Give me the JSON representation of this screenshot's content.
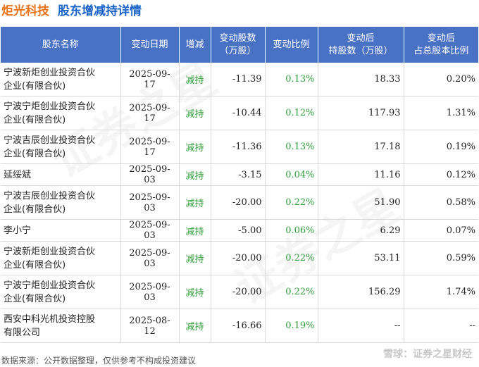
{
  "title": {
    "company": "炬光科技",
    "subtitle": "股东增减持详情"
  },
  "table": {
    "headers": [
      [
        "股东名称"
      ],
      [
        "变动日期"
      ],
      [
        "增减"
      ],
      [
        "变动股数",
        "（万股）"
      ],
      [
        "变动比例"
      ],
      [
        "变动后",
        "持股数（万股）"
      ],
      [
        "变动后",
        "占总股本比例"
      ]
    ],
    "rows": [
      {
        "name": [
          "宁波新炬创业投资合伙",
          "企业(有限合伙)"
        ],
        "date": "2025-09-17",
        "dir": "减持",
        "change": "-11.39",
        "ratio": "0.13%",
        "after": "18.33",
        "pct": "0.20%"
      },
      {
        "name": [
          "宁波宁炬创业投资合伙",
          "企业(有限合伙)"
        ],
        "date": "2025-09-17",
        "dir": "减持",
        "change": "-10.44",
        "ratio": "0.12%",
        "after": "117.93",
        "pct": "1.31%"
      },
      {
        "name": [
          "宁波吉辰创业投资合伙",
          "企业(有限合伙)"
        ],
        "date": "2025-09-17",
        "dir": "减持",
        "change": "-11.36",
        "ratio": "0.13%",
        "after": "17.18",
        "pct": "0.19%"
      },
      {
        "name": [
          "延绥斌"
        ],
        "date": "2025-09-03",
        "dir": "减持",
        "change": "-3.15",
        "ratio": "0.04%",
        "after": "11.16",
        "pct": "0.12%"
      },
      {
        "name": [
          "宁波吉辰创业投资合伙",
          "企业(有限合伙)"
        ],
        "date": "2025-09-03",
        "dir": "减持",
        "change": "-20.00",
        "ratio": "0.22%",
        "after": "51.90",
        "pct": "0.58%"
      },
      {
        "name": [
          "李小宁"
        ],
        "date": "2025-09-03",
        "dir": "减持",
        "change": "-5.00",
        "ratio": "0.06%",
        "after": "6.29",
        "pct": "0.07%"
      },
      {
        "name": [
          "宁波新炬创业投资合伙",
          "企业(有限合伙)"
        ],
        "date": "2025-09-03",
        "dir": "减持",
        "change": "-20.00",
        "ratio": "0.22%",
        "after": "53.11",
        "pct": "0.59%"
      },
      {
        "name": [
          "宁波宁炬创业投资合伙",
          "企业(有限合伙)"
        ],
        "date": "2025-09-03",
        "dir": "减持",
        "change": "-20.00",
        "ratio": "0.22%",
        "after": "156.29",
        "pct": "1.74%"
      },
      {
        "name": [
          "西安中科光机投资控股",
          "有限公司"
        ],
        "date": "2025-08-12",
        "dir": "减持",
        "change": "-16.66",
        "ratio": "0.19%",
        "after": "--",
        "pct": "--"
      }
    ]
  },
  "footer": "数据来源：公开数据整理，仅供参考不构成投资建议",
  "brand": "雪球：证券之星财经",
  "watermark": "证券之星",
  "colors": {
    "header_bg": "#4a72c4",
    "decrease": "#2e9e3a",
    "company": "#e8731a",
    "subtitle": "#1a63c7"
  }
}
